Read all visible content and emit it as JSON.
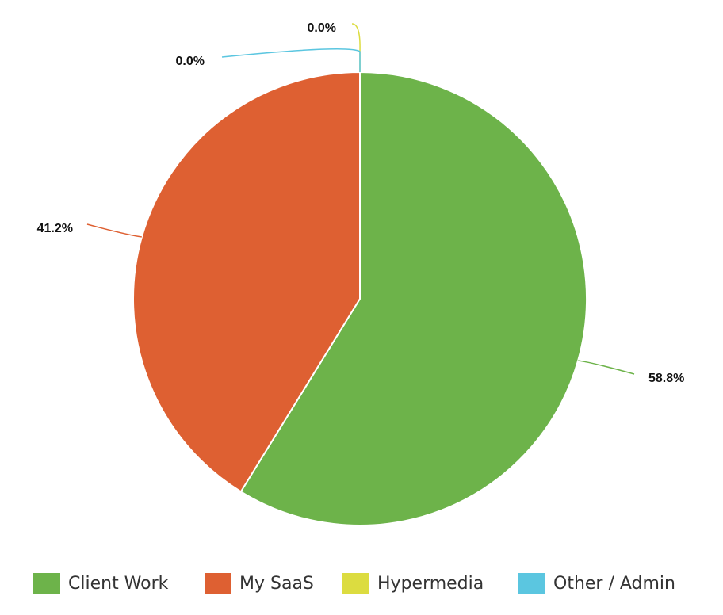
{
  "chart_data": {
    "type": "pie",
    "title": "",
    "legend_position": "bottom",
    "series": [
      {
        "name": "Client Work",
        "value": 58.8,
        "label": "58.8%",
        "color": "#6db34a"
      },
      {
        "name": "My SaaS",
        "value": 41.2,
        "label": "41.2%",
        "color": "#de6032"
      },
      {
        "name": "Hypermedia",
        "value": 0.0,
        "label": "0.0%",
        "color": "#dcdc40"
      },
      {
        "name": "Other / Admin",
        "value": 0.0,
        "label": "0.0%",
        "color": "#5bc6e0"
      }
    ]
  }
}
